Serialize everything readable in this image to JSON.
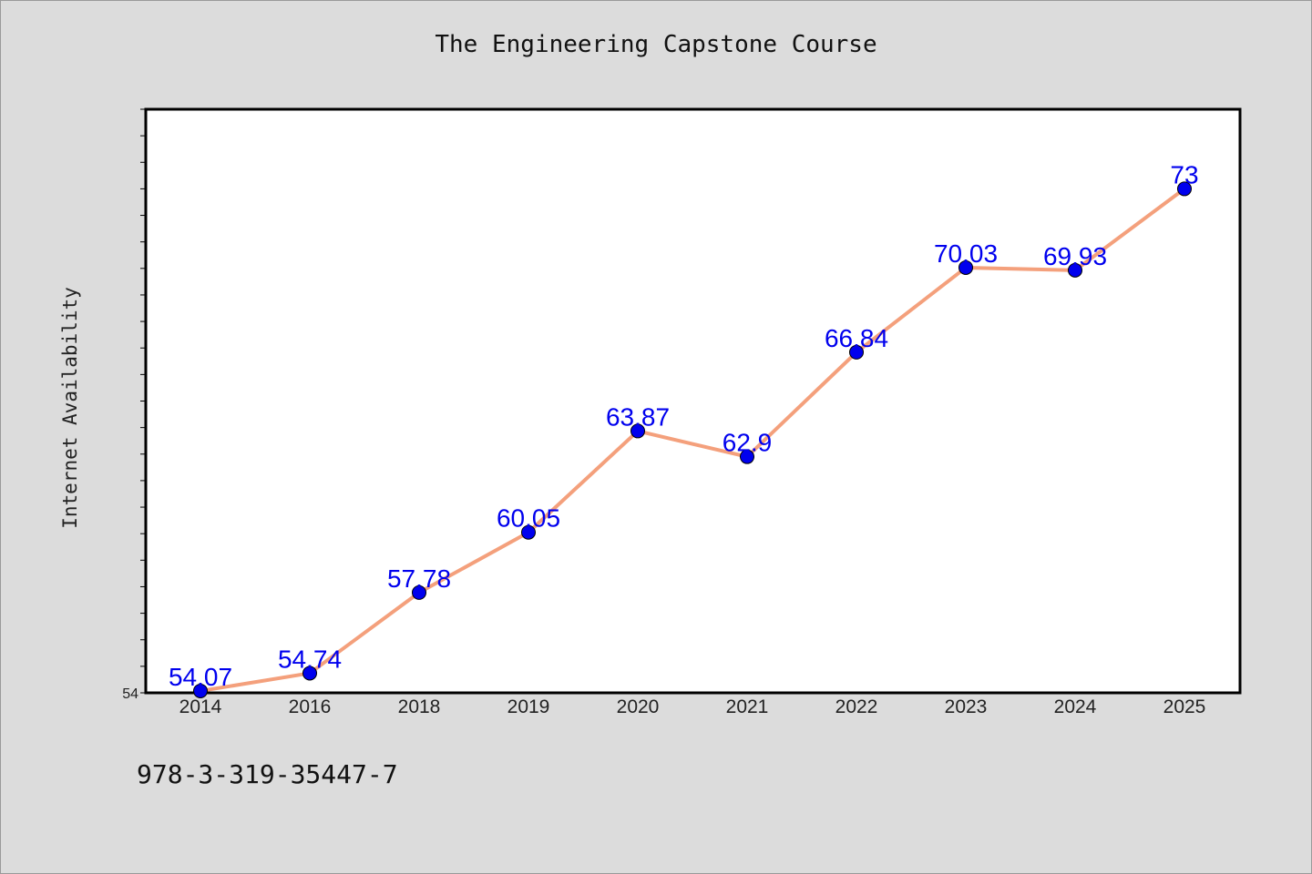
{
  "chart_data": {
    "type": "line",
    "title": "The Engineering Capstone Course",
    "xlabel": "",
    "ylabel": "Internet Availability",
    "categories": [
      "2014",
      "2016",
      "2018",
      "2019",
      "2020",
      "2021",
      "2022",
      "2023",
      "2024",
      "2025"
    ],
    "values": [
      54.07,
      54.74,
      57.78,
      60.05,
      63.87,
      62.9,
      66.84,
      70.03,
      69.93,
      73
    ],
    "data_labels": [
      "54.07",
      "54.74",
      "57.78",
      "60.05",
      "63.87",
      "62.9",
      "66.84",
      "70.03",
      "69.93",
      "73"
    ],
    "y_tick_labels": [
      "54"
    ],
    "ylim": [
      54,
      76
    ],
    "grid": false,
    "legend": "none",
    "colors": {
      "line": "#f4a07c",
      "marker": "#0000ee",
      "data_label": "#0000ee",
      "plot_background": "#ffffff",
      "page_background": "#dcdcdc"
    }
  },
  "footer": {
    "isbn": "978-3-319-35447-7"
  }
}
